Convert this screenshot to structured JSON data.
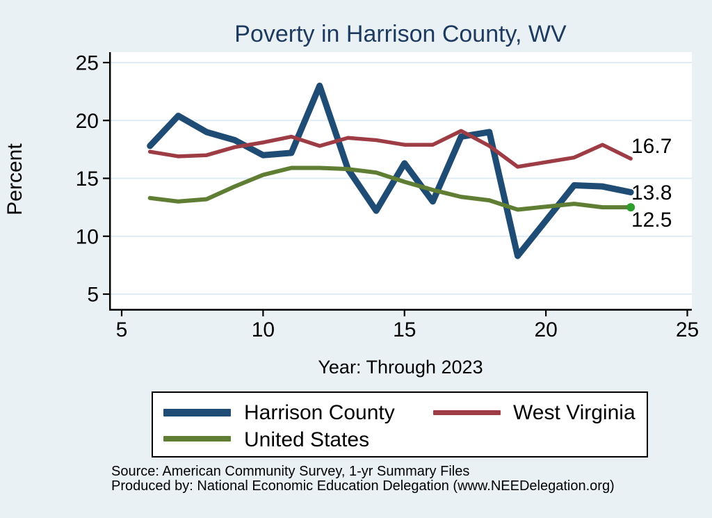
{
  "chart_data": {
    "type": "line",
    "title": "Poverty in Harrison County, WV",
    "xlabel": "Year: Through 2023",
    "ylabel": "Percent",
    "x_ticks": [
      5,
      10,
      15,
      20,
      25
    ],
    "y_ticks": [
      25,
      20,
      15,
      10,
      5
    ],
    "xlim": [
      4.6,
      25.2
    ],
    "ylim": [
      3.7,
      25.9
    ],
    "grid": true,
    "legend_position": "bottom",
    "x": [
      6,
      7,
      8,
      9,
      10,
      11,
      12,
      13,
      14,
      15,
      16,
      17,
      18,
      19,
      21,
      22,
      23
    ],
    "series": [
      {
        "name": "Harrison County",
        "color": "#1f4c74",
        "stroke_width": 9,
        "values": [
          17.8,
          20.4,
          19.0,
          18.3,
          17.0,
          17.2,
          23.0,
          15.8,
          12.2,
          16.3,
          13.0,
          18.6,
          19.0,
          8.3,
          14.4,
          14.3,
          13.8
        ]
      },
      {
        "name": "West Virginia",
        "color": "#9e3c45",
        "stroke_width": 5.5,
        "values": [
          17.3,
          16.9,
          17.0,
          17.7,
          18.1,
          18.6,
          17.8,
          18.5,
          18.3,
          17.9,
          17.9,
          19.1,
          17.8,
          16.0,
          16.8,
          17.9,
          16.7
        ]
      },
      {
        "name": "United States",
        "color": "#5f7d33",
        "stroke_width": 6,
        "end_marker_color": "#2f9e2f",
        "values": [
          13.3,
          13.0,
          13.2,
          14.3,
          15.3,
          15.9,
          15.9,
          15.8,
          15.5,
          14.7,
          14.0,
          13.4,
          13.1,
          12.3,
          12.8,
          12.5,
          12.5
        ]
      }
    ],
    "end_labels": [
      {
        "text": "16.7",
        "series": "West Virginia",
        "value": 16.7
      },
      {
        "text": "13.8",
        "series": "Harrison County",
        "value": 13.8
      },
      {
        "text": "12.5",
        "series": "United States",
        "value": 12.5
      }
    ]
  },
  "footer": {
    "source": "Source: American Community Survey, 1-yr Summary Files",
    "produced_by": "Produced by: National Economic Education Delegation (www.NEEDelegation.org)"
  },
  "colors": {
    "background": "#eaf1f5",
    "plot_background": "#ffffff",
    "gridline": "#dfecf3",
    "axis": "#000000",
    "title": "#1e3a5f"
  }
}
